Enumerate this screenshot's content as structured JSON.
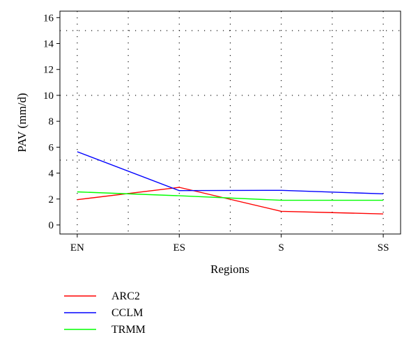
{
  "chart_data": {
    "type": "line",
    "title": "",
    "xlabel": "Regions",
    "ylabel": "PAV (mm/d)",
    "categories": [
      "EN",
      "ES",
      "S",
      "SS"
    ],
    "xlim": [
      -0.17,
      3.17
    ],
    "ylim": [
      -0.7,
      16.5
    ],
    "yticks": [
      0,
      2,
      4,
      6,
      8,
      10,
      12,
      14,
      16
    ],
    "grid": true,
    "grid_style": "dotted",
    "grid_y_lines": [
      5,
      10,
      15
    ],
    "grid_x_positions": [
      0,
      0.5,
      1,
      1.5,
      2,
      2.5,
      3
    ],
    "legend_position": "bottom-left",
    "series": [
      {
        "name": "ARC2",
        "color": "#ff0000",
        "values": [
          1.95,
          2.9,
          1.05,
          0.85
        ]
      },
      {
        "name": "CCLM",
        "color": "#0000ff",
        "values": [
          5.65,
          2.65,
          2.67,
          2.4
        ]
      },
      {
        "name": "TRMM",
        "color": "#00ff00",
        "values": [
          2.55,
          2.25,
          1.9,
          1.9
        ]
      }
    ]
  }
}
